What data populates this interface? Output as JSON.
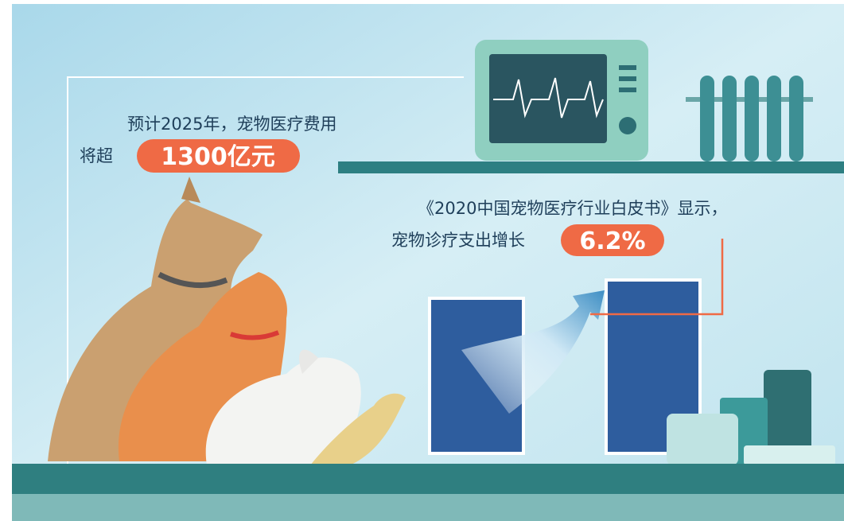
{
  "callouts": [
    {
      "line1": "预计2025年，宠物医疗费用",
      "prefix": "将超",
      "highlight": "1300亿元"
    },
    {
      "line1": "《2020中国宠物医疗行业白皮书》显示，",
      "prefix": "宠物诊疗支出增长",
      "highlight": "6.2%"
    }
  ]
}
